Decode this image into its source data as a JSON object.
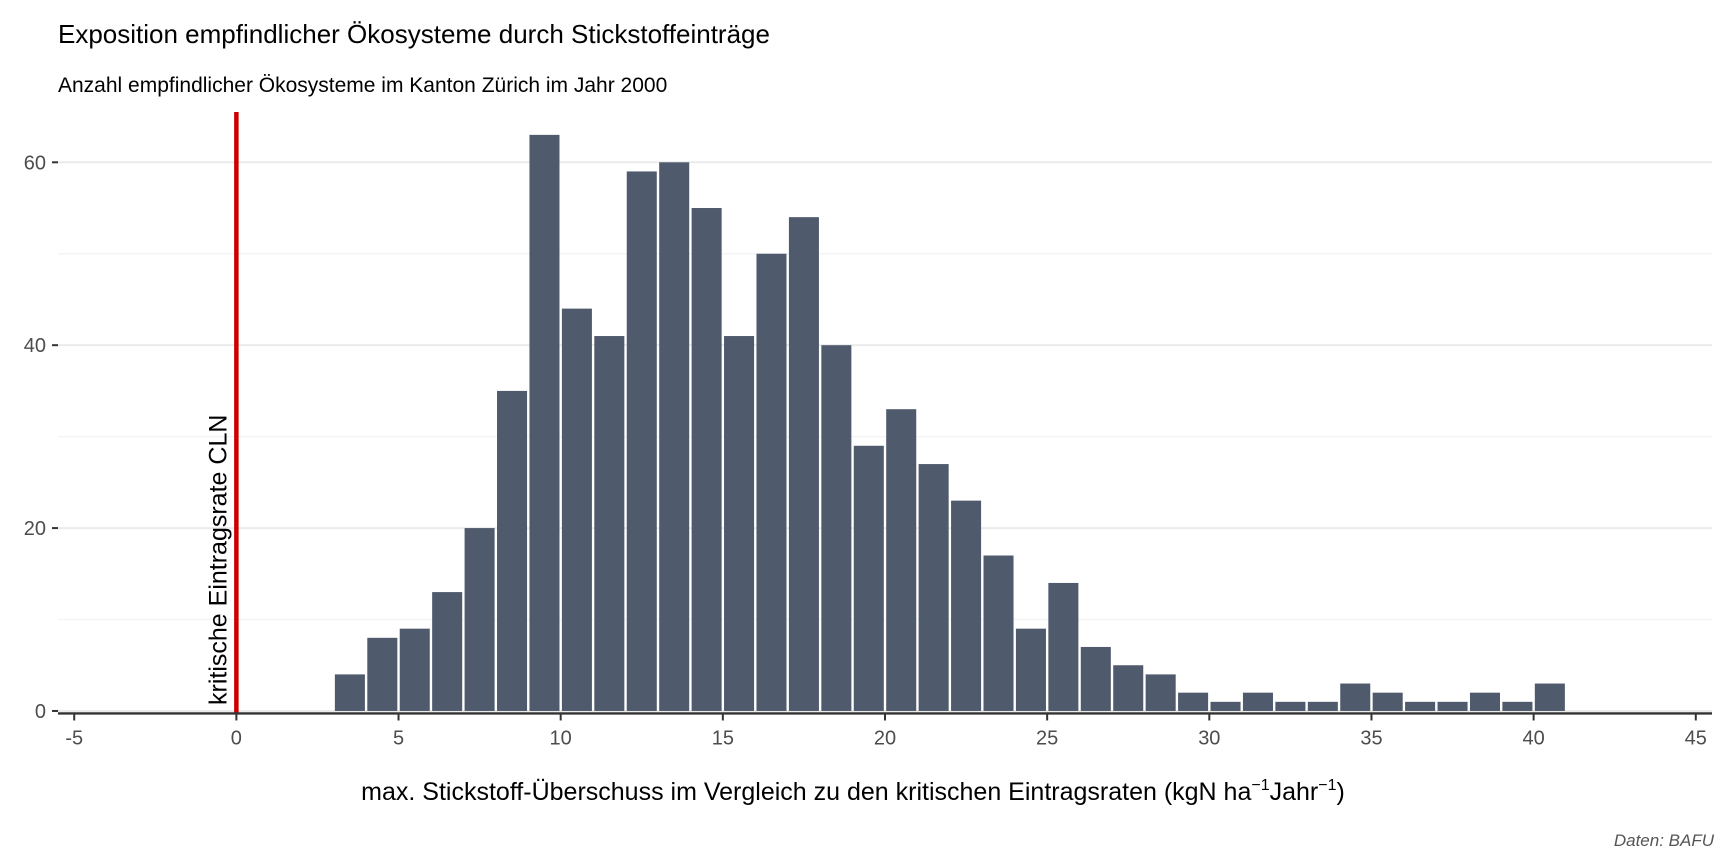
{
  "chart_data": {
    "type": "bar",
    "title": "Exposition empfindlicher Ökosysteme durch Stickstoffeinträge",
    "subtitle": "Anzahl empfindlicher Ökosysteme im Kanton Zürich im Jahr 2000",
    "xlabel": "max. Stickstoff-Überschuss im Vergleich zu den kritischen Eintragsraten (kgN ha",
    "xlabel_parts": {
      "main": "max. Stickstoff-Überschuss im Vergleich zu den kritischen Eintragsraten (kgN ha",
      "sup1": "−1",
      "mid": "Jahr",
      "sup2": "−1",
      "end": ")"
    },
    "ylabel": "",
    "caption": "Daten: BAFU",
    "xlim": [
      -5,
      45
    ],
    "ylim": [
      0,
      63
    ],
    "x_ticks": [
      -5,
      0,
      5,
      10,
      15,
      20,
      25,
      30,
      35,
      40,
      45
    ],
    "y_ticks": [
      0,
      20,
      40,
      60
    ],
    "bar_width": 1,
    "bins": [
      {
        "x": 3.5,
        "value": 4
      },
      {
        "x": 4.5,
        "value": 8
      },
      {
        "x": 5.5,
        "value": 9
      },
      {
        "x": 6.5,
        "value": 13
      },
      {
        "x": 7.5,
        "value": 20
      },
      {
        "x": 8.5,
        "value": 35
      },
      {
        "x": 9.5,
        "value": 63
      },
      {
        "x": 10.5,
        "value": 44
      },
      {
        "x": 11.5,
        "value": 41
      },
      {
        "x": 12.5,
        "value": 59
      },
      {
        "x": 13.5,
        "value": 60
      },
      {
        "x": 14.5,
        "value": 55
      },
      {
        "x": 15.5,
        "value": 41
      },
      {
        "x": 16.5,
        "value": 50
      },
      {
        "x": 17.5,
        "value": 54
      },
      {
        "x": 18.5,
        "value": 40
      },
      {
        "x": 19.5,
        "value": 29
      },
      {
        "x": 20.5,
        "value": 33
      },
      {
        "x": 21.5,
        "value": 27
      },
      {
        "x": 22.5,
        "value": 23
      },
      {
        "x": 23.5,
        "value": 17
      },
      {
        "x": 24.5,
        "value": 9
      },
      {
        "x": 25.5,
        "value": 14
      },
      {
        "x": 26.5,
        "value": 7
      },
      {
        "x": 27.5,
        "value": 5
      },
      {
        "x": 28.5,
        "value": 4
      },
      {
        "x": 29.5,
        "value": 2
      },
      {
        "x": 30.5,
        "value": 1
      },
      {
        "x": 31.5,
        "value": 2
      },
      {
        "x": 32.5,
        "value": 1
      },
      {
        "x": 33.5,
        "value": 1
      },
      {
        "x": 34.5,
        "value": 3
      },
      {
        "x": 35.5,
        "value": 2
      },
      {
        "x": 36.5,
        "value": 1
      },
      {
        "x": 37.5,
        "value": 1
      },
      {
        "x": 38.5,
        "value": 2
      },
      {
        "x": 39.5,
        "value": 1
      },
      {
        "x": 40.5,
        "value": 3
      }
    ],
    "reference_line": {
      "x": 0,
      "label": "kritische Eintragsrate CLN",
      "color": "#cc0000"
    },
    "grid": true,
    "colors": {
      "bar": "#4f5a6c",
      "grid": "#ebebeb",
      "axis": "#333333",
      "text": "#000000",
      "tick_text": "#4d4d4d",
      "caption": "#555555"
    }
  }
}
